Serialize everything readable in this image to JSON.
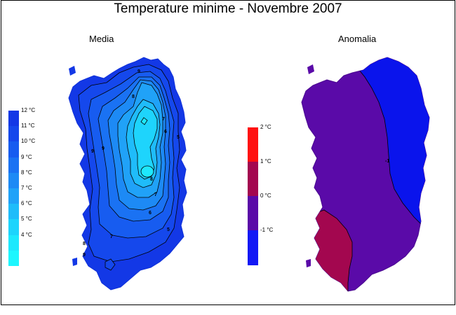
{
  "title": "Temperature minime - Novembre 2007",
  "panels": [
    {
      "subtitle": "Media",
      "legend": {
        "unit": "°C",
        "ticks": [
          "12 °C",
          "11 °C",
          "10 °C",
          "9 °C",
          "8 °C",
          "7 °C",
          "6 °C",
          "5 °C",
          "4 °C"
        ],
        "colors": [
          "#1338e6",
          "#1548ec",
          "#175cf0",
          "#1a72f3",
          "#1d8af5",
          "#20a2f8",
          "#1fbcfa",
          "#1ed4fc",
          "#1ee8fd",
          "#1ef6fe"
        ]
      },
      "contour_labels": [
        "9",
        "8",
        "7",
        "6",
        "5",
        "9",
        "9",
        "8",
        "7",
        "6",
        "5",
        "7",
        "8",
        "9",
        "10"
      ]
    },
    {
      "subtitle": "Anomalia",
      "legend": {
        "unit": "°C",
        "ticks": [
          "2 °C",
          "1 °C",
          "0 °C",
          "-1 °C"
        ],
        "colors": [
          "#ff1010",
          "#a3074f",
          "#5a0aa8",
          "#1318f5"
        ]
      },
      "contour_labels": [
        "-1"
      ],
      "region_colors": {
        "negative": "#0a14ec",
        "zero": "#5a0aa8",
        "positive": "#a3074f"
      }
    }
  ]
}
